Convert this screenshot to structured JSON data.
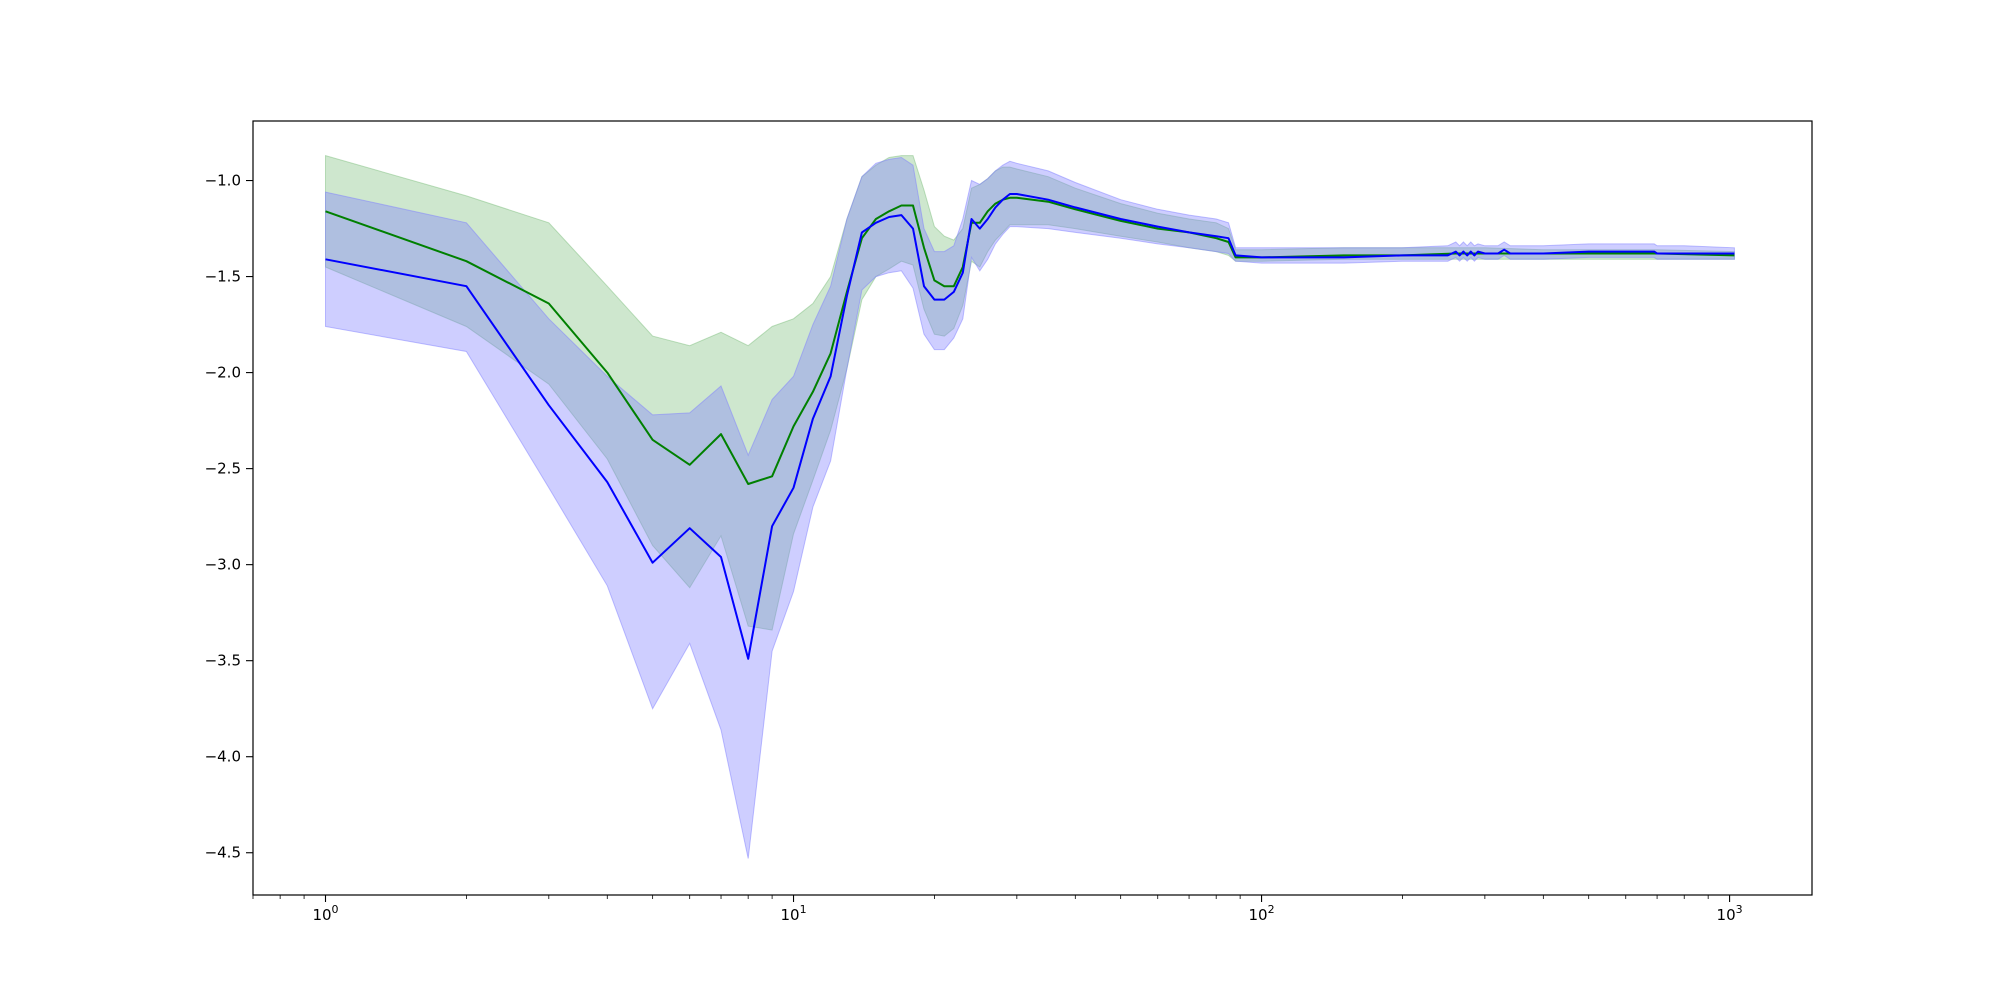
{
  "chart_data": {
    "type": "line",
    "title": "",
    "xlabel": "",
    "ylabel": "",
    "xscale": "log",
    "xlim": [
      0.7,
      1500
    ],
    "ylim": [
      -4.72,
      -0.69
    ],
    "grid": false,
    "legend": "none",
    "x_ticks": [
      {
        "value": 1,
        "base": "10",
        "exp": "0"
      },
      {
        "value": 10,
        "base": "10",
        "exp": "1"
      },
      {
        "value": 100,
        "base": "10",
        "exp": "2"
      },
      {
        "value": 1000,
        "base": "10",
        "exp": "3"
      }
    ],
    "y_ticks": [
      {
        "value": -1.0,
        "label": "−1.0"
      },
      {
        "value": -1.5,
        "label": "−1.5"
      },
      {
        "value": -2.0,
        "label": "−2.0"
      },
      {
        "value": -2.5,
        "label": "−2.5"
      },
      {
        "value": -3.0,
        "label": "−3.0"
      },
      {
        "value": -3.5,
        "label": "−3.5"
      },
      {
        "value": -4.0,
        "label": "−4.0"
      },
      {
        "value": -4.5,
        "label": "−4.5"
      }
    ],
    "series": [
      {
        "color": "#008000",
        "band_color": "#7fbf7f",
        "band_opacity": 0.38,
        "x": [
          1,
          2,
          3,
          4,
          5,
          6,
          7,
          8,
          9,
          10,
          11,
          12,
          13,
          14,
          15,
          16,
          17,
          18,
          19,
          20,
          21,
          22,
          23,
          24,
          25,
          26,
          27,
          28,
          29,
          30,
          35,
          40,
          50,
          60,
          70,
          80,
          85,
          88,
          100,
          150,
          200,
          260,
          300,
          400,
          500,
          700,
          1024
        ],
        "mean": [
          -1.16,
          -1.42,
          -1.64,
          -2.0,
          -2.35,
          -2.48,
          -2.32,
          -2.58,
          -2.54,
          -2.28,
          -2.1,
          -1.9,
          -1.58,
          -1.3,
          -1.2,
          -1.16,
          -1.13,
          -1.13,
          -1.35,
          -1.52,
          -1.55,
          -1.55,
          -1.45,
          -1.22,
          -1.22,
          -1.16,
          -1.12,
          -1.1,
          -1.09,
          -1.09,
          -1.11,
          -1.15,
          -1.21,
          -1.25,
          -1.27,
          -1.3,
          -1.32,
          -1.4,
          -1.4,
          -1.39,
          -1.39,
          -1.38,
          -1.38,
          -1.38,
          -1.38,
          -1.38,
          -1.39
        ],
        "upper": [
          -0.87,
          -1.08,
          -1.22,
          -1.55,
          -1.81,
          -1.86,
          -1.79,
          -1.86,
          -1.76,
          -1.72,
          -1.64,
          -1.5,
          -1.2,
          -0.98,
          -0.92,
          -0.88,
          -0.87,
          -0.87,
          -1.05,
          -1.24,
          -1.29,
          -1.31,
          -1.25,
          -1.04,
          -1.02,
          -0.99,
          -0.95,
          -0.93,
          -0.93,
          -0.94,
          -0.98,
          -1.04,
          -1.12,
          -1.17,
          -1.2,
          -1.22,
          -1.25,
          -1.36,
          -1.36,
          -1.35,
          -1.35,
          -1.35,
          -1.35,
          -1.36,
          -1.36,
          -1.36,
          -1.37
        ],
        "lower": [
          -1.45,
          -1.76,
          -2.06,
          -2.45,
          -2.9,
          -3.12,
          -2.85,
          -3.32,
          -3.34,
          -2.84,
          -2.56,
          -2.3,
          -1.98,
          -1.62,
          -1.5,
          -1.46,
          -1.42,
          -1.44,
          -1.67,
          -1.8,
          -1.81,
          -1.77,
          -1.65,
          -1.42,
          -1.45,
          -1.37,
          -1.31,
          -1.27,
          -1.23,
          -1.23,
          -1.23,
          -1.25,
          -1.29,
          -1.32,
          -1.35,
          -1.37,
          -1.39,
          -1.42,
          -1.42,
          -1.41,
          -1.41,
          -1.41,
          -1.41,
          -1.41,
          -1.41,
          -1.41,
          -1.41
        ]
      },
      {
        "color": "#0000ff",
        "band_color": "#7f7fff",
        "band_opacity": 0.38,
        "x": [
          1,
          2,
          3,
          4,
          5,
          6,
          7,
          8,
          9,
          10,
          11,
          12,
          13,
          14,
          15,
          16,
          17,
          18,
          19,
          20,
          21,
          22,
          23,
          24,
          25,
          26,
          27,
          28,
          29,
          30,
          35,
          40,
          50,
          60,
          70,
          80,
          85,
          88,
          100,
          150,
          200,
          250,
          260,
          265,
          270,
          275,
          280,
          285,
          290,
          300,
          320,
          330,
          340,
          360,
          380,
          400,
          500,
          600,
          690,
          700,
          800,
          1024
        ],
        "mean": [
          -1.41,
          -1.55,
          -2.17,
          -2.57,
          -2.99,
          -2.81,
          -2.96,
          -3.49,
          -2.8,
          -2.6,
          -2.24,
          -2.02,
          -1.6,
          -1.27,
          -1.22,
          -1.19,
          -1.18,
          -1.25,
          -1.55,
          -1.62,
          -1.62,
          -1.58,
          -1.48,
          -1.2,
          -1.25,
          -1.2,
          -1.14,
          -1.1,
          -1.07,
          -1.07,
          -1.1,
          -1.14,
          -1.2,
          -1.24,
          -1.27,
          -1.29,
          -1.3,
          -1.39,
          -1.4,
          -1.4,
          -1.39,
          -1.39,
          -1.37,
          -1.39,
          -1.37,
          -1.39,
          -1.37,
          -1.39,
          -1.37,
          -1.38,
          -1.38,
          -1.36,
          -1.38,
          -1.38,
          -1.38,
          -1.38,
          -1.37,
          -1.37,
          -1.37,
          -1.38,
          -1.38,
          -1.38
        ],
        "upper": [
          -1.06,
          -1.22,
          -1.72,
          -2.02,
          -2.22,
          -2.21,
          -2.07,
          -2.43,
          -2.14,
          -2.02,
          -1.75,
          -1.55,
          -1.2,
          -0.98,
          -0.91,
          -0.89,
          -0.88,
          -0.92,
          -1.25,
          -1.37,
          -1.37,
          -1.34,
          -1.2,
          -1.0,
          -1.02,
          -0.99,
          -0.95,
          -0.92,
          -0.9,
          -0.91,
          -0.95,
          -1.01,
          -1.1,
          -1.15,
          -1.18,
          -1.2,
          -1.22,
          -1.35,
          -1.35,
          -1.35,
          -1.35,
          -1.34,
          -1.32,
          -1.34,
          -1.32,
          -1.34,
          -1.32,
          -1.34,
          -1.33,
          -1.34,
          -1.34,
          -1.32,
          -1.34,
          -1.34,
          -1.34,
          -1.34,
          -1.33,
          -1.33,
          -1.33,
          -1.34,
          -1.34,
          -1.35
        ],
        "lower": [
          -1.76,
          -1.89,
          -2.6,
          -3.11,
          -3.75,
          -3.41,
          -3.86,
          -4.53,
          -3.45,
          -3.14,
          -2.7,
          -2.46,
          -1.98,
          -1.57,
          -1.5,
          -1.48,
          -1.47,
          -1.56,
          -1.8,
          -1.88,
          -1.88,
          -1.82,
          -1.72,
          -1.4,
          -1.47,
          -1.41,
          -1.33,
          -1.28,
          -1.24,
          -1.24,
          -1.25,
          -1.27,
          -1.3,
          -1.33,
          -1.35,
          -1.37,
          -1.38,
          -1.42,
          -1.43,
          -1.43,
          -1.42,
          -1.42,
          -1.4,
          -1.42,
          -1.4,
          -1.42,
          -1.4,
          -1.42,
          -1.4,
          -1.41,
          -1.41,
          -1.39,
          -1.41,
          -1.41,
          -1.41,
          -1.41,
          -1.4,
          -1.4,
          -1.4,
          -1.41,
          -1.41,
          -1.41
        ]
      }
    ]
  }
}
